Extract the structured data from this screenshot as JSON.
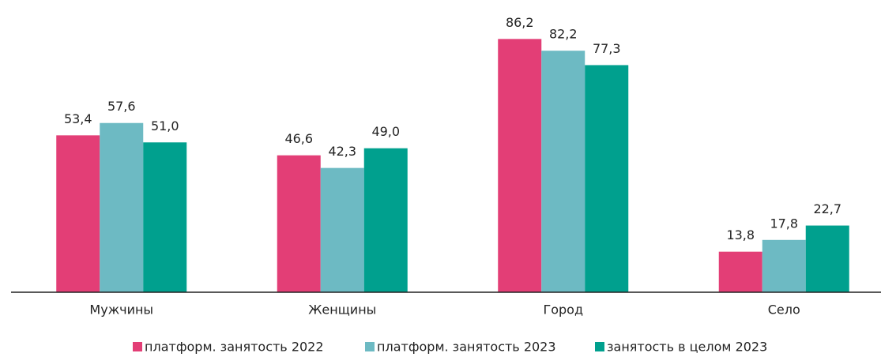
{
  "chart_data": {
    "type": "bar",
    "categories": [
      "Мужчины",
      "Женщины",
      "Город",
      "Село"
    ],
    "series": [
      {
        "name": "платформ. занятость 2022",
        "color": "#e33e76",
        "values": [
          53.4,
          46.6,
          86.2,
          13.8
        ],
        "value_labels": [
          "53,4",
          "46,6",
          "86,2",
          "13,8"
        ]
      },
      {
        "name": "платформ. занятость 2023",
        "color": "#6dbac3",
        "values": [
          57.6,
          42.3,
          82.2,
          17.8
        ],
        "value_labels": [
          "57,6",
          "42,3",
          "82,2",
          "17,8"
        ]
      },
      {
        "name": "занятость в целом 2023",
        "color": "#00a08e",
        "values": [
          51.0,
          49.0,
          77.3,
          22.7
        ],
        "value_labels": [
          "51,0",
          "49,0",
          "77,3",
          "22,7"
        ]
      }
    ],
    "ylim": [
      0,
      100
    ],
    "legend": "bottom"
  }
}
